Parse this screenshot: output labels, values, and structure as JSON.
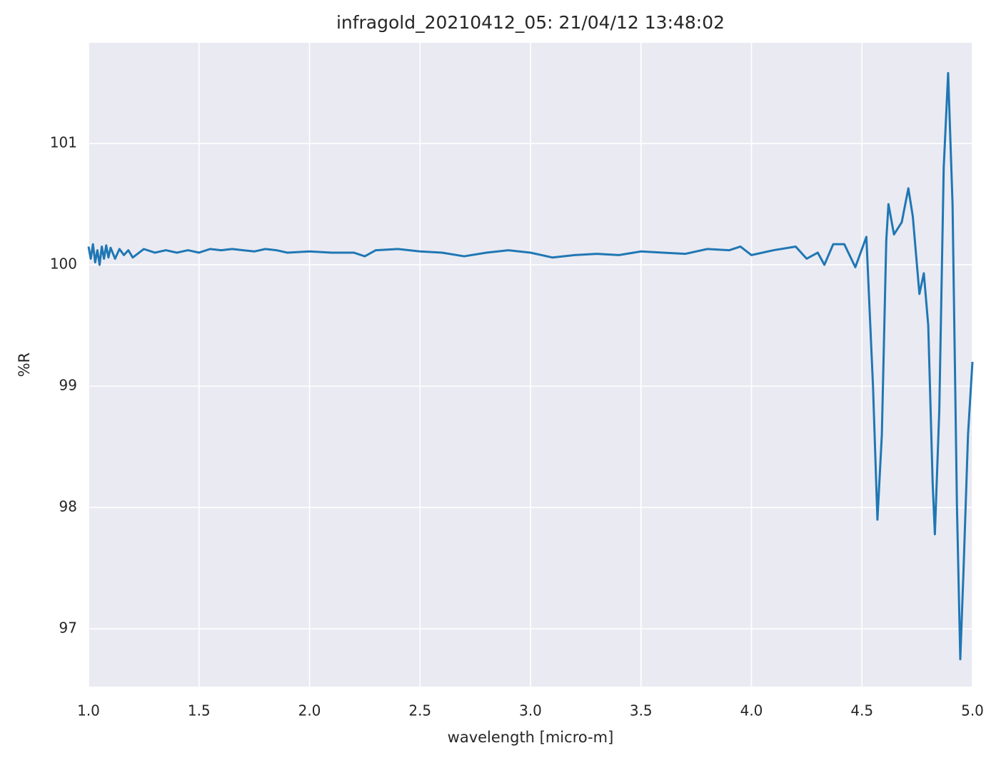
{
  "chart_data": {
    "type": "line",
    "title": "infragold_20210412_05:  21/04/12 13:48:02",
    "x_label": "wavelength [micro-m]",
    "y_label": "%R",
    "xlim": [
      1.0,
      5.0
    ],
    "ylim": [
      96.524,
      101.829
    ],
    "xticks": [
      {
        "value": 1,
        "label": "1.0"
      },
      1.5,
      {
        "value": 2,
        "label": "2.0"
      },
      2.5,
      {
        "value": 3,
        "label": "3.0"
      },
      3.5,
      {
        "value": 4,
        "label": "4.0"
      },
      4.5,
      {
        "value": 5,
        "label": "5.0"
      }
    ],
    "yticks": [
      97,
      98,
      99,
      100,
      101
    ],
    "grid": true,
    "background": "#eaeaf2",
    "series": [
      {
        "name": "%R",
        "color": "#1f77b4",
        "x": [
          1.0,
          1.01,
          1.02,
          1.03,
          1.04,
          1.05,
          1.06,
          1.07,
          1.08,
          1.09,
          1.1,
          1.12,
          1.14,
          1.16,
          1.18,
          1.2,
          1.25,
          1.3,
          1.35,
          1.4,
          1.45,
          1.5,
          1.55,
          1.6,
          1.65,
          1.7,
          1.75,
          1.8,
          1.85,
          1.9,
          2.0,
          2.1,
          2.2,
          2.25,
          2.3,
          2.4,
          2.5,
          2.6,
          2.7,
          2.8,
          2.9,
          3.0,
          3.1,
          3.2,
          3.3,
          3.4,
          3.5,
          3.6,
          3.7,
          3.8,
          3.9,
          3.95,
          4.0,
          4.1,
          4.2,
          4.25,
          4.3,
          4.33,
          4.37,
          4.42,
          4.47,
          4.52,
          4.55,
          4.57,
          4.59,
          4.61,
          4.62,
          4.645,
          4.68,
          4.71,
          4.73,
          4.76,
          4.78,
          4.8,
          4.82,
          4.83,
          4.85,
          4.87,
          4.89,
          4.91,
          4.93,
          4.945,
          4.96,
          4.98,
          5.0
        ],
        "values": [
          100.15,
          100.05,
          100.17,
          100.02,
          100.12,
          100.0,
          100.15,
          100.05,
          100.16,
          100.06,
          100.14,
          100.05,
          100.13,
          100.08,
          100.12,
          100.06,
          100.13,
          100.1,
          100.12,
          100.1,
          100.12,
          100.1,
          100.13,
          100.12,
          100.13,
          100.12,
          100.11,
          100.13,
          100.12,
          100.1,
          100.11,
          100.1,
          100.1,
          100.07,
          100.12,
          100.13,
          100.11,
          100.1,
          100.07,
          100.1,
          100.12,
          100.1,
          100.06,
          100.08,
          100.09,
          100.08,
          100.11,
          100.1,
          100.09,
          100.13,
          100.12,
          100.15,
          100.08,
          100.12,
          100.15,
          100.05,
          100.1,
          100.0,
          100.17,
          100.17,
          99.98,
          100.23,
          99.0,
          97.9,
          98.6,
          100.2,
          100.5,
          100.25,
          100.35,
          100.63,
          100.4,
          99.76,
          99.93,
          99.5,
          98.2,
          97.78,
          98.8,
          100.8,
          101.58,
          100.5,
          98.0,
          96.75,
          97.5,
          98.6,
          99.2
        ]
      }
    ]
  }
}
